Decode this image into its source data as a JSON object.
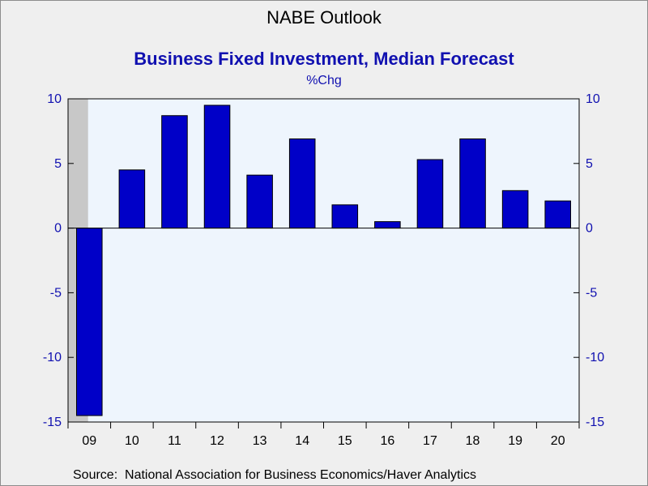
{
  "title": "NABE Outlook",
  "subtitle": "Business Fixed Investment, Median Forecast",
  "units_label": "%Chg",
  "source": "Source:  National Association for Business Economics/Haver Analytics",
  "colors": {
    "bar_fill": "#0000c8",
    "bar_outline": "#000000",
    "plot_bg": "#eef5fd",
    "recession_shade": "#c8c8c8",
    "axis_text": "#1010b0",
    "page_bg": "#efefef"
  },
  "chart_data": {
    "type": "bar",
    "categories": [
      "09",
      "10",
      "11",
      "12",
      "13",
      "14",
      "15",
      "16",
      "17",
      "18",
      "19",
      "20"
    ],
    "values": [
      -14.5,
      4.5,
      8.7,
      9.5,
      4.1,
      6.9,
      1.8,
      0.5,
      5.3,
      6.9,
      2.9,
      2.1
    ],
    "ylim": [
      -15,
      10
    ],
    "yticks": [
      -15,
      -10,
      -5,
      0,
      5,
      10
    ],
    "ytick_labels": [
      "-15",
      "-10",
      "-5",
      "0",
      "5",
      "10"
    ],
    "recession_shade_category": "09",
    "grid": false
  }
}
